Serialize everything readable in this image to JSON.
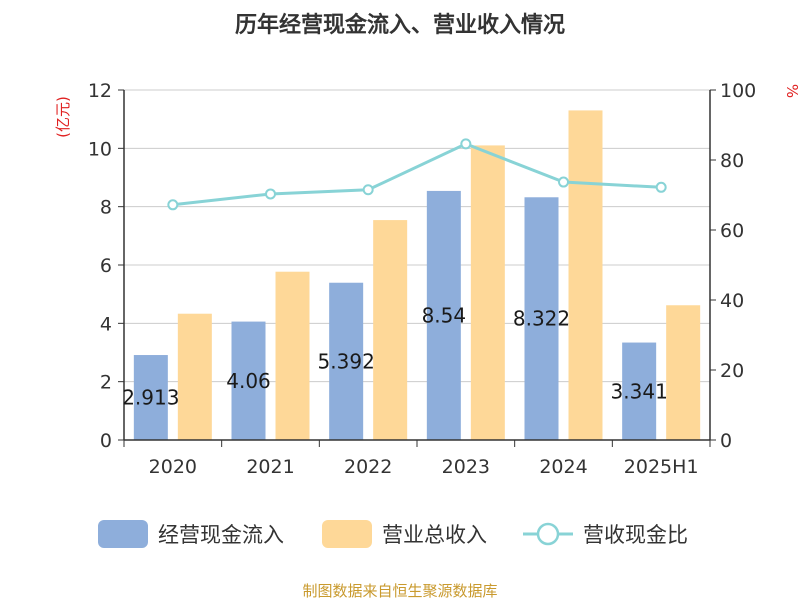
{
  "chart_data": {
    "type": "bar",
    "title": "历年经营现金流入、营业收入情况",
    "categories": [
      "2020",
      "2021",
      "2022",
      "2023",
      "2024",
      "2025H1"
    ],
    "series": [
      {
        "name": "经营现金流入",
        "type": "bar",
        "axis": "left",
        "color": "#8eaedb",
        "values": [
          2.913,
          4.06,
          5.392,
          8.54,
          8.322,
          3.341
        ],
        "data_labels": [
          "2.913",
          "4.06",
          "5.392",
          "8.54",
          "8.322",
          "3.341"
        ]
      },
      {
        "name": "营业总收入",
        "type": "bar",
        "axis": "left",
        "color": "#fed898",
        "values": [
          4.33,
          5.77,
          7.54,
          10.1,
          11.3,
          4.62
        ]
      },
      {
        "name": "营收现金比",
        "type": "line",
        "axis": "right",
        "color": "#88d3d6",
        "values": [
          67.2,
          70.3,
          71.5,
          84.6,
          73.7,
          72.2
        ]
      }
    ],
    "y_left": {
      "unit_label": "(亿元)",
      "ylim": [
        0,
        12
      ],
      "ticks": [
        "0",
        "2",
        "4",
        "6",
        "8",
        "10",
        "12"
      ]
    },
    "y_right": {
      "unit_label": "%",
      "ylim": [
        0,
        100
      ],
      "ticks": [
        "0",
        "20",
        "40",
        "60",
        "80",
        "100"
      ]
    },
    "grid": true,
    "legend_position": "bottom"
  },
  "source": "制图数据来自恒生聚源数据库"
}
